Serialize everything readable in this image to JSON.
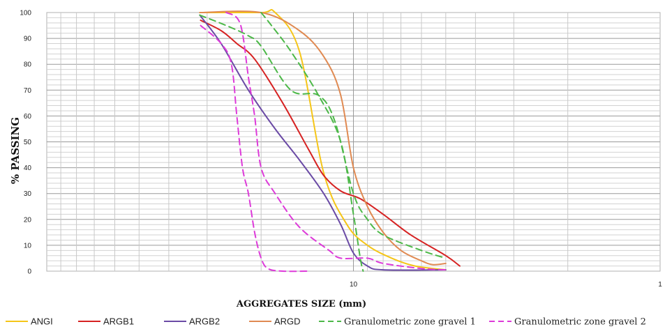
{
  "chart_data": {
    "type": "line",
    "title": "",
    "xlabel": "AGGREGATES SIZE (mm)",
    "ylabel": "% PASSING",
    "x_scale": "log",
    "x_reversed": true,
    "x_range": [
      100,
      1
    ],
    "ylim": [
      0,
      100
    ],
    "y_ticks": [
      0,
      10,
      20,
      30,
      40,
      50,
      60,
      70,
      80,
      90,
      100
    ],
    "x_tick_labels": [
      {
        "value": 10,
        "label": "10"
      },
      {
        "value": 1,
        "label": "1"
      }
    ],
    "grid": true,
    "legend_position": "bottom",
    "series": [
      {
        "name": "ANGI",
        "color": "#f5c518",
        "dash": false,
        "points": [
          [
            31.7,
            100
          ],
          [
            20,
            100
          ],
          [
            18,
            100
          ],
          [
            15,
            85
          ],
          [
            12.5,
            38
          ],
          [
            10.5,
            18
          ],
          [
            9,
            10
          ],
          [
            7.5,
            5
          ],
          [
            6.3,
            2
          ],
          [
            5,
            0.5
          ]
        ]
      },
      {
        "name": "ARGB1",
        "color": "#d62222",
        "dash": false,
        "points": [
          [
            31.5,
            97
          ],
          [
            27,
            93
          ],
          [
            24,
            88
          ],
          [
            21,
            82
          ],
          [
            17,
            65
          ],
          [
            14,
            47
          ],
          [
            12.5,
            37
          ],
          [
            11,
            31
          ],
          [
            9.5,
            28
          ],
          [
            8,
            22
          ],
          [
            6.5,
            14
          ],
          [
            5,
            6
          ],
          [
            4.5,
            2
          ]
        ]
      },
      {
        "name": "ARGB2",
        "color": "#6a4aa5",
        "dash": false,
        "points": [
          [
            31.7,
            99
          ],
          [
            27,
            88
          ],
          [
            22,
            70
          ],
          [
            18,
            55
          ],
          [
            15,
            43
          ],
          [
            12.5,
            30
          ],
          [
            11,
            18
          ],
          [
            10,
            7
          ],
          [
            9,
            2
          ],
          [
            8,
            0.5
          ],
          [
            5,
            0.5
          ]
        ]
      },
      {
        "name": "ARGD",
        "color": "#e08a52",
        "dash": false,
        "points": [
          [
            31.7,
            100
          ],
          [
            20,
            100
          ],
          [
            15,
            93
          ],
          [
            12.5,
            83
          ],
          [
            11,
            68
          ],
          [
            10,
            40
          ],
          [
            9,
            25
          ],
          [
            8,
            15
          ],
          [
            7,
            8
          ],
          [
            6,
            4
          ],
          [
            5.5,
            2.5
          ],
          [
            5,
            3
          ]
        ]
      },
      {
        "name": "Granulometric zone gravel 1",
        "color": "#4cb848",
        "dash": true,
        "points": [
          [
            31.7,
            99
          ],
          [
            26,
            95
          ],
          [
            22,
            91
          ],
          [
            20,
            87
          ],
          [
            16,
            70
          ],
          [
            13,
            68
          ],
          [
            11.5,
            58
          ],
          [
            10,
            30
          ],
          [
            9,
            20
          ],
          [
            8,
            14
          ],
          [
            6,
            8
          ],
          [
            5,
            5
          ]
        ]
      },
      {
        "name": "Granulometric zone gravel 2",
        "color": "#dd3ad9",
        "dash": true,
        "points": [
          [
            31.5,
            95
          ],
          [
            27,
            88
          ],
          [
            25,
            80
          ],
          [
            24,
            60
          ],
          [
            23,
            40
          ],
          [
            22,
            30
          ],
          [
            21,
            15
          ],
          [
            20,
            5
          ],
          [
            19,
            1
          ],
          [
            17,
            0
          ],
          [
            14,
            0
          ]
        ]
      },
      {
        "name": "Granulometric zone gravel 2",
        "color": "#dd3ad9",
        "dash": true,
        "points": [
          [
            26,
            100
          ],
          [
            24,
            98
          ],
          [
            23,
            92
          ],
          [
            22,
            75
          ],
          [
            21,
            60
          ],
          [
            20,
            40
          ],
          [
            18,
            30
          ],
          [
            15,
            17
          ],
          [
            12,
            8
          ],
          [
            11,
            5
          ],
          [
            9,
            5
          ],
          [
            8,
            3
          ],
          [
            6,
            1
          ],
          [
            5,
            0.5
          ]
        ]
      },
      {
        "name": "Granulometric zone gravel 1",
        "color": "#4cb848",
        "dash": true,
        "points": [
          [
            20,
            100
          ],
          [
            18.5,
            95
          ],
          [
            16,
            85
          ],
          [
            13,
            68
          ],
          [
            11,
            50
          ],
          [
            10,
            22
          ],
          [
            9.5,
            5
          ],
          [
            9.3,
            0
          ]
        ]
      }
    ]
  },
  "legend": [
    {
      "name": "ANGI",
      "color": "#f5c518",
      "dash": false,
      "serif": false
    },
    {
      "name": "ARGB1",
      "color": "#d62222",
      "dash": false,
      "serif": false
    },
    {
      "name": "ARGB2",
      "color": "#6a4aa5",
      "dash": false,
      "serif": false
    },
    {
      "name": "ARGD",
      "color": "#e08a52",
      "dash": false,
      "serif": false
    },
    {
      "name": "Granulometric zone gravel 1",
      "color": "#4cb848",
      "dash": true,
      "serif": true
    },
    {
      "name": "Granulometric zone gravel 2",
      "color": "#dd3ad9",
      "dash": true,
      "serif": true
    }
  ]
}
